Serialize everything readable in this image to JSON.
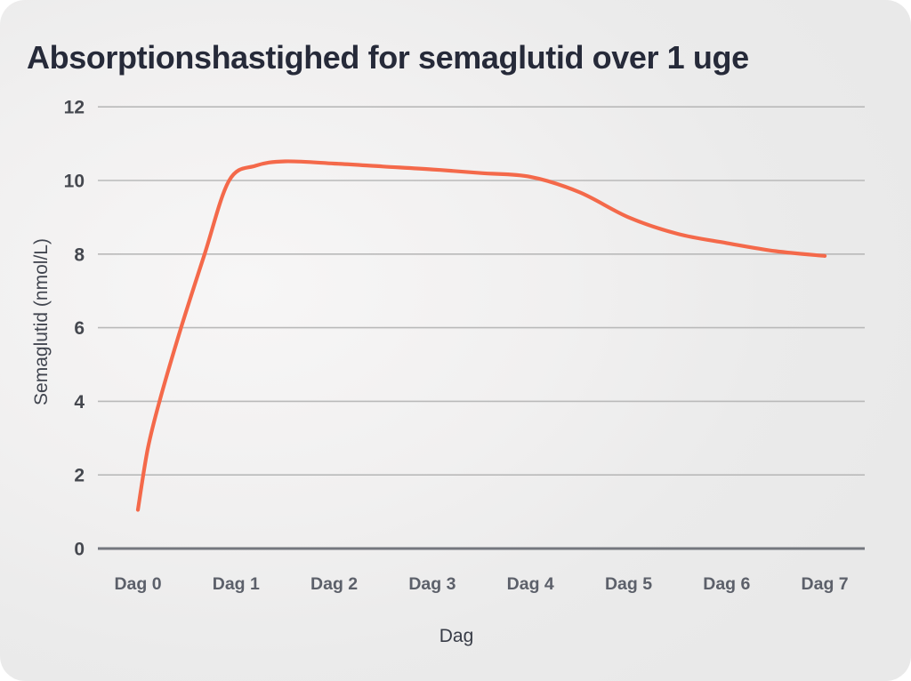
{
  "card": {
    "title": "Absorptionshastighed for semaglutid over 1 uge"
  },
  "chart_data": {
    "type": "line",
    "title": "Absorptionshastighed for semaglutid over 1 uge",
    "xlabel": "Dag",
    "ylabel": "Semaglutid (nmol/L)",
    "categories": [
      "Dag 0",
      "Dag 1",
      "Dag 2",
      "Dag 3",
      "Dag 4",
      "Dag 5",
      "Dag 6",
      "Dag 7"
    ],
    "x_days": [
      0,
      1,
      2,
      3,
      4,
      5,
      6,
      7
    ],
    "values_per_day": [
      1.05,
      10.1,
      10.45,
      10.3,
      10.1,
      9.0,
      8.3,
      7.95
    ],
    "curve_points": [
      [
        0,
        1.05
      ],
      [
        0.1,
        2.7
      ],
      [
        0.22,
        4.0
      ],
      [
        0.44,
        6.0
      ],
      [
        0.68,
        8.0
      ],
      [
        0.93,
        10.0
      ],
      [
        1.2,
        10.4
      ],
      [
        1.5,
        10.52
      ],
      [
        2,
        10.46
      ],
      [
        2.5,
        10.38
      ],
      [
        3,
        10.3
      ],
      [
        3.5,
        10.2
      ],
      [
        4,
        10.1
      ],
      [
        4.5,
        9.68
      ],
      [
        5,
        9.0
      ],
      [
        5.5,
        8.55
      ],
      [
        6,
        8.3
      ],
      [
        6.5,
        8.08
      ],
      [
        7,
        7.95
      ]
    ],
    "y_ticks": [
      0,
      2,
      4,
      6,
      8,
      10,
      12
    ],
    "ylim": [
      0,
      12
    ],
    "xlim_days": [
      0,
      7
    ],
    "grid": "horizontal",
    "legend": "none",
    "series_name": "Semaglutid",
    "line_color": "#f4694a"
  },
  "colors": {
    "line": "#f4694a",
    "gridline": "#b9b9b9",
    "axis_line": "#74777e",
    "y_tick_label": "#45484f",
    "x_tick_label": "#5c606a",
    "title": "#262a39"
  }
}
